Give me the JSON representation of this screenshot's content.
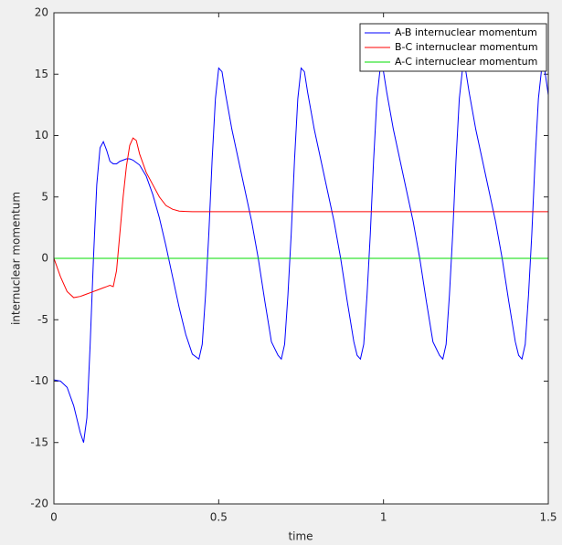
{
  "chart_data": {
    "type": "line",
    "xlabel": "time",
    "ylabel": "internuclear momentum",
    "x": [
      0,
      0.02,
      0.04,
      0.06,
      0.08,
      0.09,
      0.1,
      0.11,
      0.12,
      0.13,
      0.14,
      0.15,
      0.16,
      0.17,
      0.18,
      0.19,
      0.2,
      0.21,
      0.22,
      0.23,
      0.24,
      0.25,
      0.26,
      0.28,
      0.3,
      0.32,
      0.34,
      0.36,
      0.38,
      0.4,
      0.42,
      0.44,
      0.45,
      0.46,
      0.47,
      0.48,
      0.49,
      0.5,
      0.51,
      0.52,
      0.54,
      0.56,
      0.58,
      0.6,
      0.62,
      0.64,
      0.66,
      0.68,
      0.69,
      0.7,
      0.71,
      0.72,
      0.73,
      0.74,
      0.75,
      0.76,
      0.77,
      0.79,
      0.81,
      0.83,
      0.85,
      0.87,
      0.89,
      0.91,
      0.92,
      0.93,
      0.94,
      0.95,
      0.96,
      0.97,
      0.98,
      0.99,
      1,
      1.01,
      1.03,
      1.05,
      1.07,
      1.09,
      1.11,
      1.13,
      1.15,
      1.17,
      1.18,
      1.19,
      1.2,
      1.21,
      1.22,
      1.23,
      1.24,
      1.25,
      1.26,
      1.28,
      1.3,
      1.32,
      1.34,
      1.36,
      1.38,
      1.4,
      1.41,
      1.42,
      1.43,
      1.44,
      1.45,
      1.46,
      1.47,
      1.48,
      1.49,
      1.5
    ],
    "series": [
      {
        "name": "A-B internuclear momentum",
        "color": "#0000ff",
        "values": [
          -9.9,
          -10,
          -10.5,
          -12,
          -14.2,
          -15,
          -13,
          -7,
          0,
          6,
          9,
          9.5,
          8.8,
          7.9,
          7.7,
          7.7,
          7.9,
          8,
          8.1,
          8.1,
          8,
          7.8,
          7.6,
          6.7,
          5.2,
          3.3,
          1,
          -1.5,
          -4,
          -6.2,
          -7.8,
          -8.2,
          -7,
          -3,
          2,
          8,
          13,
          15.5,
          15.2,
          13.5,
          10.5,
          8,
          5.5,
          3,
          0,
          -3.5,
          -6.8,
          -7.9,
          -8.2,
          -7,
          -3,
          2,
          8,
          13,
          15.5,
          15.2,
          13.5,
          10.5,
          8,
          5.5,
          3,
          0,
          -3.5,
          -6.8,
          -7.9,
          -8.2,
          -7,
          -3,
          2,
          8,
          13,
          15.5,
          15.2,
          13.5,
          10.5,
          8,
          5.5,
          3,
          0,
          -3.5,
          -6.8,
          -7.9,
          -8.2,
          -7,
          -3,
          2,
          8,
          13,
          15.5,
          15.2,
          13.5,
          10.5,
          8,
          5.5,
          3,
          0,
          -3.5,
          -6.8,
          -7.9,
          -8.2,
          -7,
          -3,
          2,
          8,
          13,
          15.5,
          15.2,
          13.3
        ]
      },
      {
        "name": "B-C internuclear momentum",
        "color": "#ff0000",
        "values": [
          0,
          -1.5,
          -2.7,
          -3.2,
          -3.1,
          -3,
          -2.9,
          -2.8,
          -2.7,
          -2.6,
          -2.5,
          -2.4,
          -2.3,
          -2.2,
          -2.3,
          -1,
          2,
          5,
          7.5,
          9.2,
          9.8,
          9.6,
          8.5,
          7,
          6,
          5,
          4.3,
          4,
          3.85,
          3.82,
          3.8,
          3.8,
          3.8,
          3.8,
          3.8,
          3.8,
          3.8,
          3.8,
          3.8,
          3.8,
          3.8,
          3.8,
          3.8,
          3.8,
          3.8,
          3.8,
          3.8,
          3.8,
          3.8,
          3.8,
          3.8,
          3.8,
          3.8,
          3.8,
          3.8,
          3.8,
          3.8,
          3.8,
          3.8,
          3.8,
          3.8,
          3.8,
          3.8,
          3.8,
          3.8,
          3.8,
          3.8,
          3.8,
          3.8,
          3.8,
          3.8,
          3.8,
          3.8,
          3.8,
          3.8,
          3.8,
          3.8,
          3.8,
          3.8,
          3.8,
          3.8,
          3.8,
          3.8,
          3.8,
          3.8,
          3.8,
          3.8,
          3.8,
          3.8,
          3.8,
          3.8,
          3.8,
          3.8,
          3.8,
          3.8,
          3.8,
          3.8,
          3.8,
          3.8,
          3.8,
          3.8,
          3.8,
          3.8,
          3.8,
          3.8,
          3.8,
          3.8,
          3.8
        ]
      },
      {
        "name": "A-C internuclear momentum",
        "color": "#00dd00",
        "values": [
          0,
          0,
          0,
          0,
          0,
          0,
          0,
          0,
          0,
          0,
          0,
          0,
          0,
          0,
          0,
          0,
          0,
          0,
          0,
          0,
          0,
          0,
          0,
          0,
          0,
          0,
          0,
          0,
          0,
          0,
          0,
          0,
          0,
          0,
          0,
          0,
          0,
          0,
          0,
          0,
          0,
          0,
          0,
          0,
          0,
          0,
          0,
          0,
          0,
          0,
          0,
          0,
          0,
          0,
          0,
          0,
          0,
          0,
          0,
          0,
          0,
          0,
          0,
          0,
          0,
          0,
          0,
          0,
          0,
          0,
          0,
          0,
          0,
          0,
          0,
          0,
          0,
          0,
          0,
          0,
          0,
          0,
          0,
          0,
          0,
          0,
          0,
          0,
          0,
          0,
          0,
          0,
          0,
          0,
          0,
          0,
          0,
          0,
          0,
          0,
          0,
          0,
          0,
          0,
          0,
          0,
          0,
          0
        ]
      }
    ],
    "xlim": [
      0,
      1.5
    ],
    "xticks": [
      0,
      0.5,
      1,
      1.5
    ],
    "ylim": [
      -20,
      20
    ],
    "yticks": [
      -20,
      -15,
      -10,
      -5,
      0,
      5,
      10,
      15,
      20
    ],
    "grid": false,
    "legend": "northeast"
  }
}
